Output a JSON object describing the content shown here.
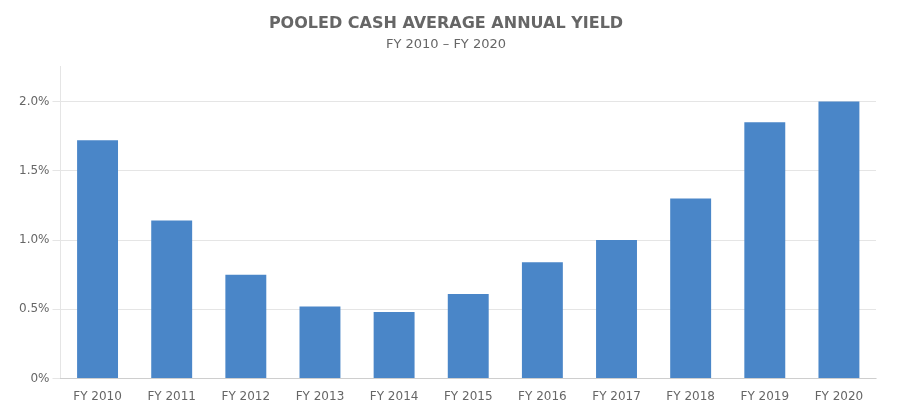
{
  "chart_data": {
    "type": "bar",
    "title": "POOLED CASH AVERAGE ANNUAL YIELD",
    "subtitle": "FY 2010 – FY 2020",
    "categories": [
      "FY 2010",
      "FY 2011",
      "FY 2012",
      "FY 2013",
      "FY 2014",
      "FY 2015",
      "FY 2016",
      "FY 2017",
      "FY 2018",
      "FY 2019",
      "FY 2020"
    ],
    "values": [
      0.0172,
      0.0114,
      0.0075,
      0.0052,
      0.0048,
      0.0061,
      0.0084,
      0.01,
      0.013,
      0.0185,
      0.02
    ],
    "color": "#4a86c8",
    "ylim": [
      0,
      0.0225
    ],
    "yticks": [
      {
        "value": 0,
        "label": "0%"
      },
      {
        "value": 0.005,
        "label": "0.5%"
      },
      {
        "value": 0.01,
        "label": "1.0%"
      },
      {
        "value": 0.015,
        "label": "1.5%"
      },
      {
        "value": 0.02,
        "label": "2.0%"
      }
    ],
    "grid": true
  }
}
